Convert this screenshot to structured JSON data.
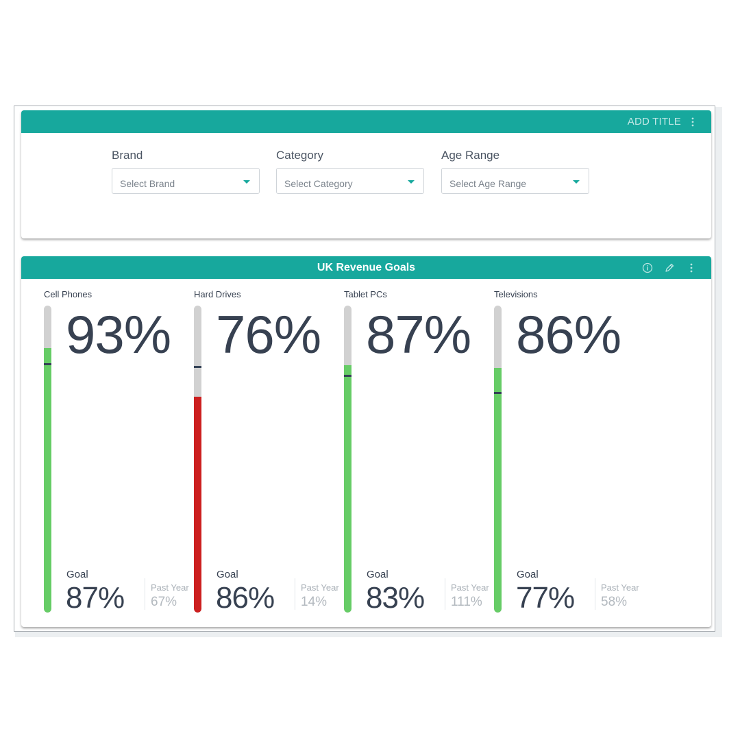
{
  "filter_widget": {
    "add_title": "ADD TITLE",
    "filters": [
      {
        "label": "Brand",
        "placeholder": "Select Brand"
      },
      {
        "label": "Category",
        "placeholder": "Select Category"
      },
      {
        "label": "Age Range",
        "placeholder": "Select Age Range"
      }
    ]
  },
  "revenue_widget": {
    "title": "UK Revenue Goals",
    "past_year_label": "Past Year",
    "goal_label": "Goal",
    "kpis": [
      {
        "name": "Cell Phones",
        "value": "93%",
        "value_pct": 93,
        "goal": "87%",
        "goal_pct": 87,
        "past_year": "67%",
        "status_color": "#66cc66"
      },
      {
        "name": "Hard Drives",
        "value": "76%",
        "value_pct": 76,
        "goal": "86%",
        "goal_pct": 86,
        "past_year": "14%",
        "status_color": "#cc1f1f"
      },
      {
        "name": "Tablet PCs",
        "value": "87%",
        "value_pct": 87,
        "goal": "83%",
        "goal_pct": 83,
        "past_year": "111%",
        "status_color": "#66cc66"
      },
      {
        "name": "Televisions",
        "value": "86%",
        "value_pct": 86,
        "goal": "77%",
        "goal_pct": 77,
        "past_year": "58%",
        "status_color": "#66cc66"
      }
    ]
  },
  "icons": {
    "info": "info-icon",
    "edit": "pencil-icon",
    "menu": "kebab-menu-icon"
  },
  "colors": {
    "header": "#17a89d",
    "on_target": "#66cc66",
    "below_target": "#cc1f1f"
  }
}
